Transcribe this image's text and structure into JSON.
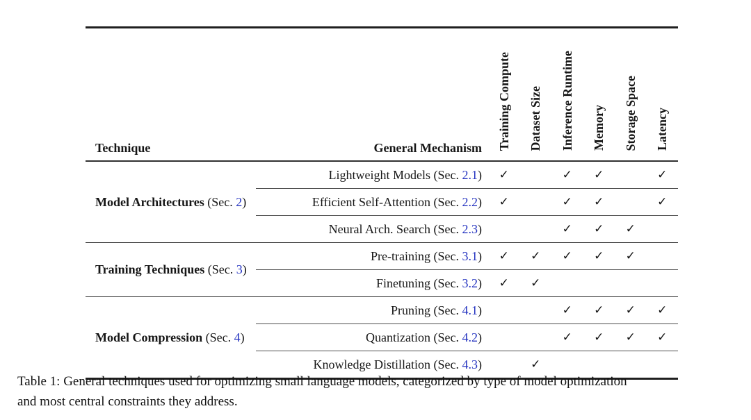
{
  "colors": {
    "link_blue": "#2433c0",
    "rule_dark": "#1f1f1f"
  },
  "checkmark_glyph": "✓",
  "table": {
    "headers": {
      "technique": "Technique",
      "mechanism": "General Mechanism"
    },
    "columns": [
      "Training Compute",
      "Dataset Size",
      "Inference Runtime",
      "Memory",
      "Storage Space",
      "Latency"
    ],
    "groups": [
      {
        "name": "Model Architectures",
        "sec_prefix": " (Sec. ",
        "sec_num": "2",
        "sec_suffix": ")",
        "rows": [
          {
            "label": "Lightweight Models (Sec. ",
            "sec_num": "2.1",
            "suffix": ")",
            "checks": [
              "✓",
              "",
              "✓",
              "✓",
              "",
              "✓"
            ]
          },
          {
            "label": "Efficient Self-Attention (Sec. ",
            "sec_num": "2.2",
            "suffix": ")",
            "checks": [
              "✓",
              "",
              "✓",
              "✓",
              "",
              "✓"
            ]
          },
          {
            "label": "Neural Arch. Search (Sec. ",
            "sec_num": "2.3",
            "suffix": ")",
            "checks": [
              "",
              "",
              "✓",
              "✓",
              "✓",
              ""
            ]
          }
        ]
      },
      {
        "name": "Training Techniques",
        "sec_prefix": " (Sec. ",
        "sec_num": "3",
        "sec_suffix": ")",
        "rows": [
          {
            "label": "Pre-training (Sec. ",
            "sec_num": "3.1",
            "suffix": ")",
            "checks": [
              "✓",
              "✓",
              "✓",
              "✓",
              "✓",
              ""
            ]
          },
          {
            "label": "Finetuning (Sec. ",
            "sec_num": "3.2",
            "suffix": ")",
            "checks": [
              "✓",
              "✓",
              "",
              "",
              "",
              ""
            ]
          }
        ]
      },
      {
        "name": "Model Compression",
        "sec_prefix": " (Sec. ",
        "sec_num": "4",
        "sec_suffix": ")",
        "rows": [
          {
            "label": "Pruning (Sec. ",
            "sec_num": "4.1",
            "suffix": ")",
            "checks": [
              "",
              "",
              "✓",
              "✓",
              "✓",
              "✓"
            ]
          },
          {
            "label": "Quantization (Sec. ",
            "sec_num": "4.2",
            "suffix": ")",
            "checks": [
              "",
              "",
              "✓",
              "✓",
              "✓",
              "✓"
            ]
          },
          {
            "label": "Knowledge Distillation (Sec. ",
            "sec_num": "4.3",
            "suffix": ")",
            "checks": [
              "",
              "✓",
              "",
              "",
              "",
              ""
            ]
          }
        ]
      }
    ]
  },
  "caption": {
    "line1": "Table 1: General techniques used for optimizing small language models, categorized by type of model optimization",
    "line2": "and most central constraints they address."
  }
}
